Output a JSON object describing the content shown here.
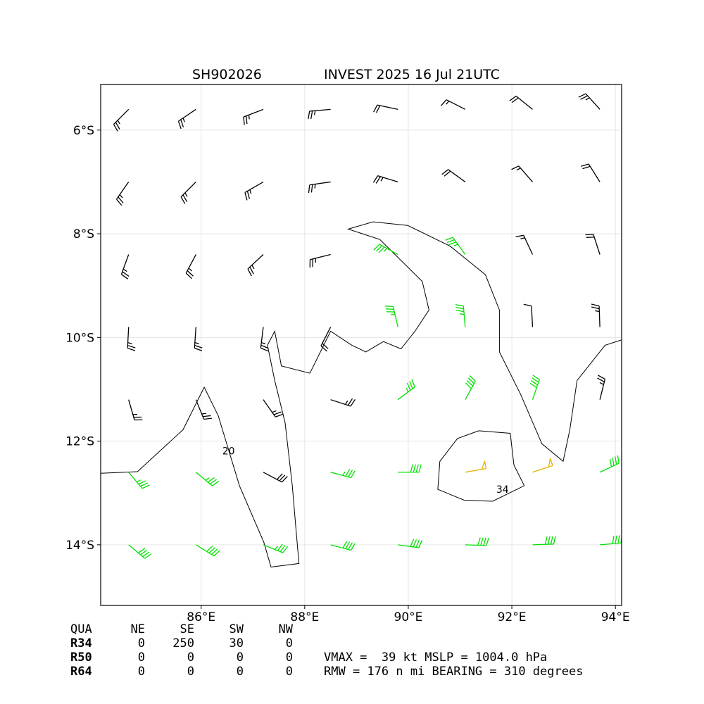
{
  "map": {
    "title_left": "SH902026",
    "title_right": "INVEST 2025 16 Jul 21UTC",
    "xlim": [
      84.06,
      94.12
    ],
    "ylim": [
      -15.17,
      -5.12
    ],
    "xticks": [
      {
        "value": 86,
        "label": "86°E"
      },
      {
        "value": 88,
        "label": "88°E"
      },
      {
        "value": 90,
        "label": "90°E"
      },
      {
        "value": 92,
        "label": "92°E"
      },
      {
        "value": 94,
        "label": "94°E"
      }
    ],
    "yticks": [
      {
        "value": -6,
        "label": "6°S"
      },
      {
        "value": -8,
        "label": "8°S"
      },
      {
        "value": -10,
        "label": "10°S"
      },
      {
        "value": -12,
        "label": "12°S"
      },
      {
        "value": -14,
        "label": "14°S"
      }
    ],
    "grid": true,
    "color_scale": [
      {
        "min": 0,
        "color": "#000000"
      },
      {
        "min": 34,
        "color": "#00e000"
      },
      {
        "min": 48,
        "color": "#e6b000"
      }
    ],
    "barbs": {
      "lons": [
        84.6,
        85.9,
        87.2,
        88.5,
        89.8,
        91.1,
        92.4,
        93.7
      ],
      "lats": [
        -5.6,
        -7,
        -8.4,
        -9.8,
        -11.2,
        -12.6,
        -14
      ],
      "speeds": [
        [
          25,
          25,
          25,
          25,
          20,
          15,
          20,
          25
        ],
        [
          25,
          25,
          25,
          25,
          25,
          20,
          15,
          20
        ],
        [
          25,
          25,
          25,
          25,
          35,
          35,
          15,
          20
        ],
        [
          25,
          25,
          25,
          20,
          35,
          35,
          10,
          25
        ],
        [
          25,
          25,
          25,
          25,
          35,
          40,
          40,
          25
        ],
        [
          35,
          35,
          30,
          35,
          40,
          50,
          50,
          40
        ],
        [
          40,
          40,
          35,
          40,
          40,
          40,
          40,
          40
        ]
      ],
      "directions": [
        [
          225,
          236,
          249,
          265,
          282,
          297,
          309,
          318
        ],
        [
          215,
          225,
          240,
          262,
          287,
          306,
          319,
          328
        ],
        [
          200,
          208,
          227,
          256,
          299,
          324,
          335,
          342
        ],
        [
          183,
          184,
          187,
          207,
          347,
          355,
          357,
          358
        ],
        [
          164,
          158,
          145,
          108,
          53,
          29,
          19,
          14
        ],
        [
          140,
          130,
          118,
          105,
          90,
          80,
          72,
          65
        ],
        [
          130,
          122,
          112,
          105,
          98,
          92,
          88,
          85
        ]
      ]
    },
    "contours": [
      {
        "level": 20,
        "label_lon": 86.53,
        "label_lat": -12.19,
        "lons": [
          84.06,
          84.77,
          85.65,
          86.06,
          86.33,
          86.74,
          87.21,
          87.35,
          87.89,
          87.83,
          87.76,
          87.62,
          87.42,
          87.28,
          87.42,
          87.55,
          88.1,
          88.5,
          88.91,
          89.18,
          89.52,
          89.86,
          90.13,
          90.4,
          90.27,
          89.45,
          88.84,
          89.32,
          89.99,
          90.81,
          91.49,
          91.76,
          91.76,
          92.17,
          92.58,
          92.99,
          93.12,
          93.26,
          93.8,
          94.11
        ],
        "lats": [
          -12.62,
          -12.59,
          -11.78,
          -10.96,
          -11.51,
          -12.86,
          -13.95,
          -14.43,
          -14.36,
          -13.68,
          -12.86,
          -11.64,
          -10.83,
          -10.15,
          -9.88,
          -10.55,
          -10.69,
          -9.88,
          -10.15,
          -10.28,
          -10.08,
          -10.22,
          -9.88,
          -9.47,
          -8.92,
          -8.11,
          -7.91,
          -7.77,
          -7.84,
          -8.24,
          -8.79,
          -9.47,
          -10.28,
          -11.1,
          -12.05,
          -12.39,
          -11.78,
          -10.83,
          -10.15,
          -10.05
        ]
      },
      {
        "level": 34,
        "label_lon": 91.82,
        "label_lat": -12.93,
        "lons": [
          91.36,
          91.97,
          92.04,
          92.24,
          91.63,
          91.08,
          90.57,
          90.61,
          90.95,
          91.36
        ],
        "lats": [
          -11.8,
          -11.85,
          -12.46,
          -12.86,
          -13.16,
          -13.14,
          -12.93,
          -12.39,
          -11.95,
          -11.8
        ]
      }
    ]
  },
  "table": {
    "header": [
      "QUA",
      "NE",
      "SE",
      "SW",
      "NW"
    ],
    "rows": [
      [
        "R34",
        0,
        250,
        30,
        0
      ],
      [
        "R50",
        0,
        0,
        0,
        0
      ],
      [
        "R64",
        0,
        0,
        0,
        0
      ]
    ]
  },
  "info": [
    "VMAX =  39 kt MSLP = 1004.0 hPa",
    "RMW = 176 n mi BEARING = 310 degrees"
  ]
}
